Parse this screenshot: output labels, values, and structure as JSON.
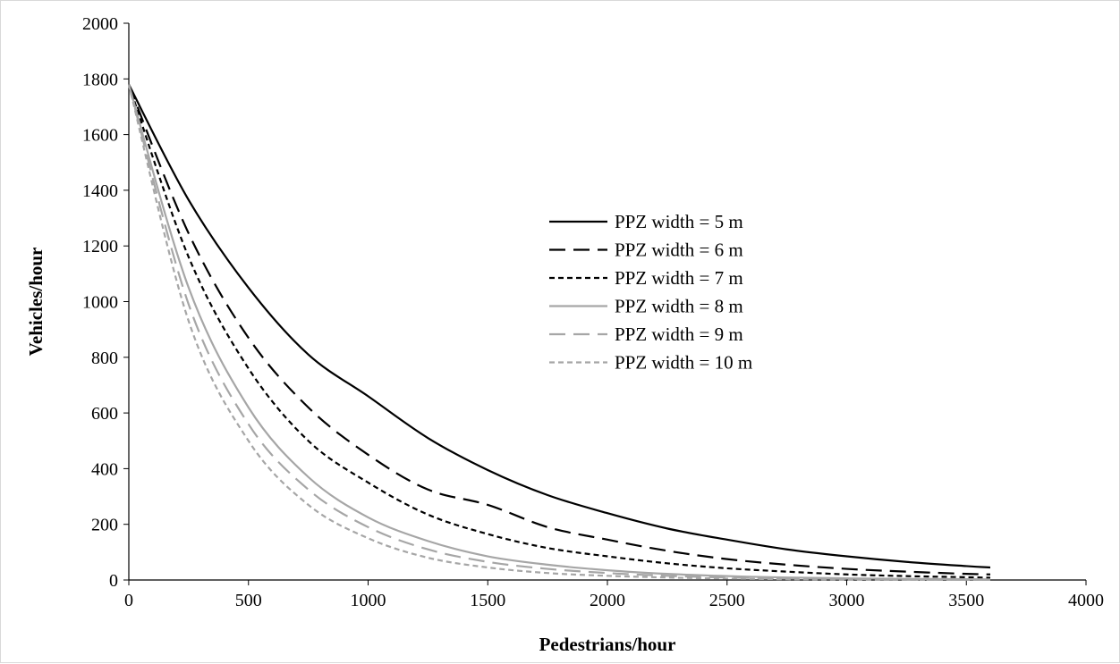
{
  "chart_data": {
    "type": "line",
    "title": "",
    "xlabel": "Pedestrians/hour",
    "ylabel": "Vehicles/hour",
    "xlim": [
      0,
      4000
    ],
    "ylim": [
      0,
      2000
    ],
    "x_ticks": [
      0,
      500,
      1000,
      1500,
      2000,
      2500,
      3000,
      3500,
      4000
    ],
    "y_ticks": [
      0,
      200,
      400,
      600,
      800,
      1000,
      1200,
      1400,
      1600,
      1800,
      2000
    ],
    "grid": false,
    "legend_position": "center-right",
    "x": [
      0,
      250,
      500,
      750,
      1000,
      1250,
      1500,
      1750,
      2000,
      2250,
      2500,
      2750,
      3000,
      3250,
      3500,
      3600
    ],
    "series": [
      {
        "name": "PPZ width = 5 m",
        "color": "#000000",
        "dash": "solid",
        "values": [
          1780,
          1365,
          1050,
          810,
          660,
          510,
          395,
          305,
          240,
          185,
          145,
          110,
          85,
          65,
          50,
          45
        ]
      },
      {
        "name": "PPZ width = 6 m",
        "color": "#000000",
        "dash": "long-dash",
        "values": [
          1780,
          1245,
          870,
          620,
          450,
          325,
          270,
          190,
          145,
          105,
          75,
          55,
          40,
          30,
          22,
          20
        ]
      },
      {
        "name": "PPZ width = 7 m",
        "color": "#000000",
        "dash": "short-dash",
        "values": [
          1780,
          1160,
          760,
          500,
          350,
          235,
          165,
          115,
          85,
          60,
          42,
          30,
          20,
          14,
          10,
          8
        ]
      },
      {
        "name": "PPZ width = 8 m",
        "color": "#a6a6a6",
        "dash": "solid",
        "values": [
          1780,
          1050,
          620,
          370,
          225,
          140,
          85,
          55,
          35,
          22,
          14,
          9,
          6,
          4,
          3,
          2
        ]
      },
      {
        "name": "PPZ width = 9 m",
        "color": "#a6a6a6",
        "dash": "long-dash",
        "values": [
          1780,
          990,
          560,
          325,
          190,
          110,
          65,
          40,
          25,
          15,
          9,
          6,
          4,
          2,
          1,
          1
        ]
      },
      {
        "name": "PPZ width = 10 m",
        "color": "#a6a6a6",
        "dash": "short-dash",
        "values": [
          1780,
          930,
          500,
          270,
          150,
          80,
          45,
          25,
          15,
          9,
          5,
          3,
          2,
          1,
          1,
          1
        ]
      }
    ]
  }
}
